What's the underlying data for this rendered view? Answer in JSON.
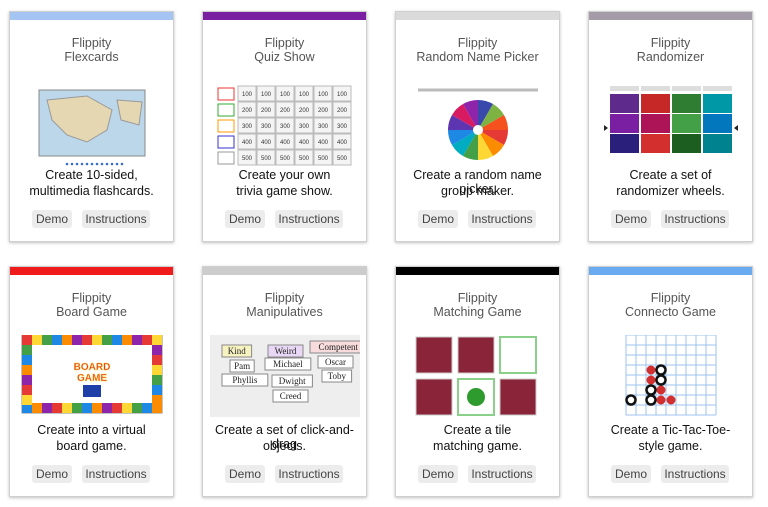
{
  "cards": [
    {
      "color": "#a4c4f2",
      "title": [
        "Flippity",
        "Flexcards"
      ],
      "description": [
        "Create 10-sided,",
        "multimedia flashcards."
      ],
      "buttons": [
        "Demo",
        "Instructions"
      ]
    },
    {
      "color": "#7b1fa2",
      "title": [
        "Flippity",
        "Quiz Show"
      ],
      "description": [
        "Create your own",
        "trivia game show."
      ],
      "buttons": [
        "Demo",
        "Instructions"
      ],
      "thumbnail": {
        "values": [
          "100",
          "200",
          "300",
          "400",
          "500"
        ]
      }
    },
    {
      "color": "#dadada",
      "title": [
        "Flippity",
        "Random Name Picker"
      ],
      "description": [
        "Create a random name picker,",
        "group maker."
      ],
      "buttons": [
        "Demo",
        "Instructions"
      ]
    },
    {
      "color": "#a39ca8",
      "title": [
        "Flippity",
        "Randomizer"
      ],
      "description": [
        "Create a set of",
        "randomizer wheels."
      ],
      "buttons": [
        "Demo",
        "Instructions"
      ]
    },
    {
      "color": "#f01c1c",
      "title": [
        "Flippity",
        "Board Game"
      ],
      "description": [
        "Create into a virtual",
        "board game."
      ],
      "buttons": [
        "Demo",
        "Instructions"
      ],
      "thumbnail": {
        "words": [
          "BOARD",
          "GAME"
        ]
      }
    },
    {
      "color": "#cccccc",
      "title": [
        "Flippity",
        "Manipulatives"
      ],
      "description": [
        "Create a set of click-and-drag",
        "objects."
      ],
      "buttons": [
        "Demo",
        "Instructions"
      ],
      "thumbnail": {
        "words": [
          "Kind",
          "Weird",
          "Competent",
          "Pam",
          "Michael",
          "Oscar",
          "Phyllis",
          "Dwight",
          "Toby",
          "Creed"
        ]
      }
    },
    {
      "color": "#000000",
      "title": [
        "Flippity",
        "Matching Game"
      ],
      "description": [
        "Create a tile",
        "matching game."
      ],
      "buttons": [
        "Demo",
        "Instructions"
      ]
    },
    {
      "color": "#6aaaf0",
      "title": [
        "Flippity",
        "Connecto Game"
      ],
      "description": [
        "Create a Tic-Tac-Toe-",
        "style game."
      ],
      "buttons": [
        "Demo",
        "Instructions"
      ]
    }
  ]
}
